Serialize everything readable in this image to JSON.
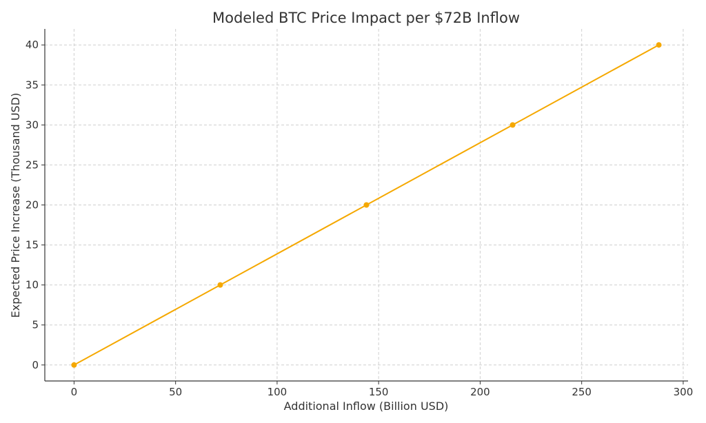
{
  "chart_data": {
    "type": "line",
    "title": "Modeled BTC Price Impact per $72B Inflow",
    "xlabel": "Additional Inflow (Billion USD)",
    "ylabel": "Expected Price Increase (Thousand USD)",
    "x": [
      0,
      72,
      144,
      216,
      288
    ],
    "series": [
      {
        "values": [
          0,
          10,
          20,
          30,
          40
        ],
        "color": "#F5A800",
        "marker": "circle"
      }
    ],
    "xlim": [
      -14.4,
      302.4
    ],
    "ylim": [
      -2,
      42
    ],
    "xticks": [
      0,
      50,
      100,
      150,
      200,
      250,
      300
    ],
    "yticks": [
      0,
      5,
      10,
      15,
      20,
      25,
      30,
      35,
      40
    ],
    "grid": true,
    "grid_style": "dashed",
    "legend": "none"
  }
}
